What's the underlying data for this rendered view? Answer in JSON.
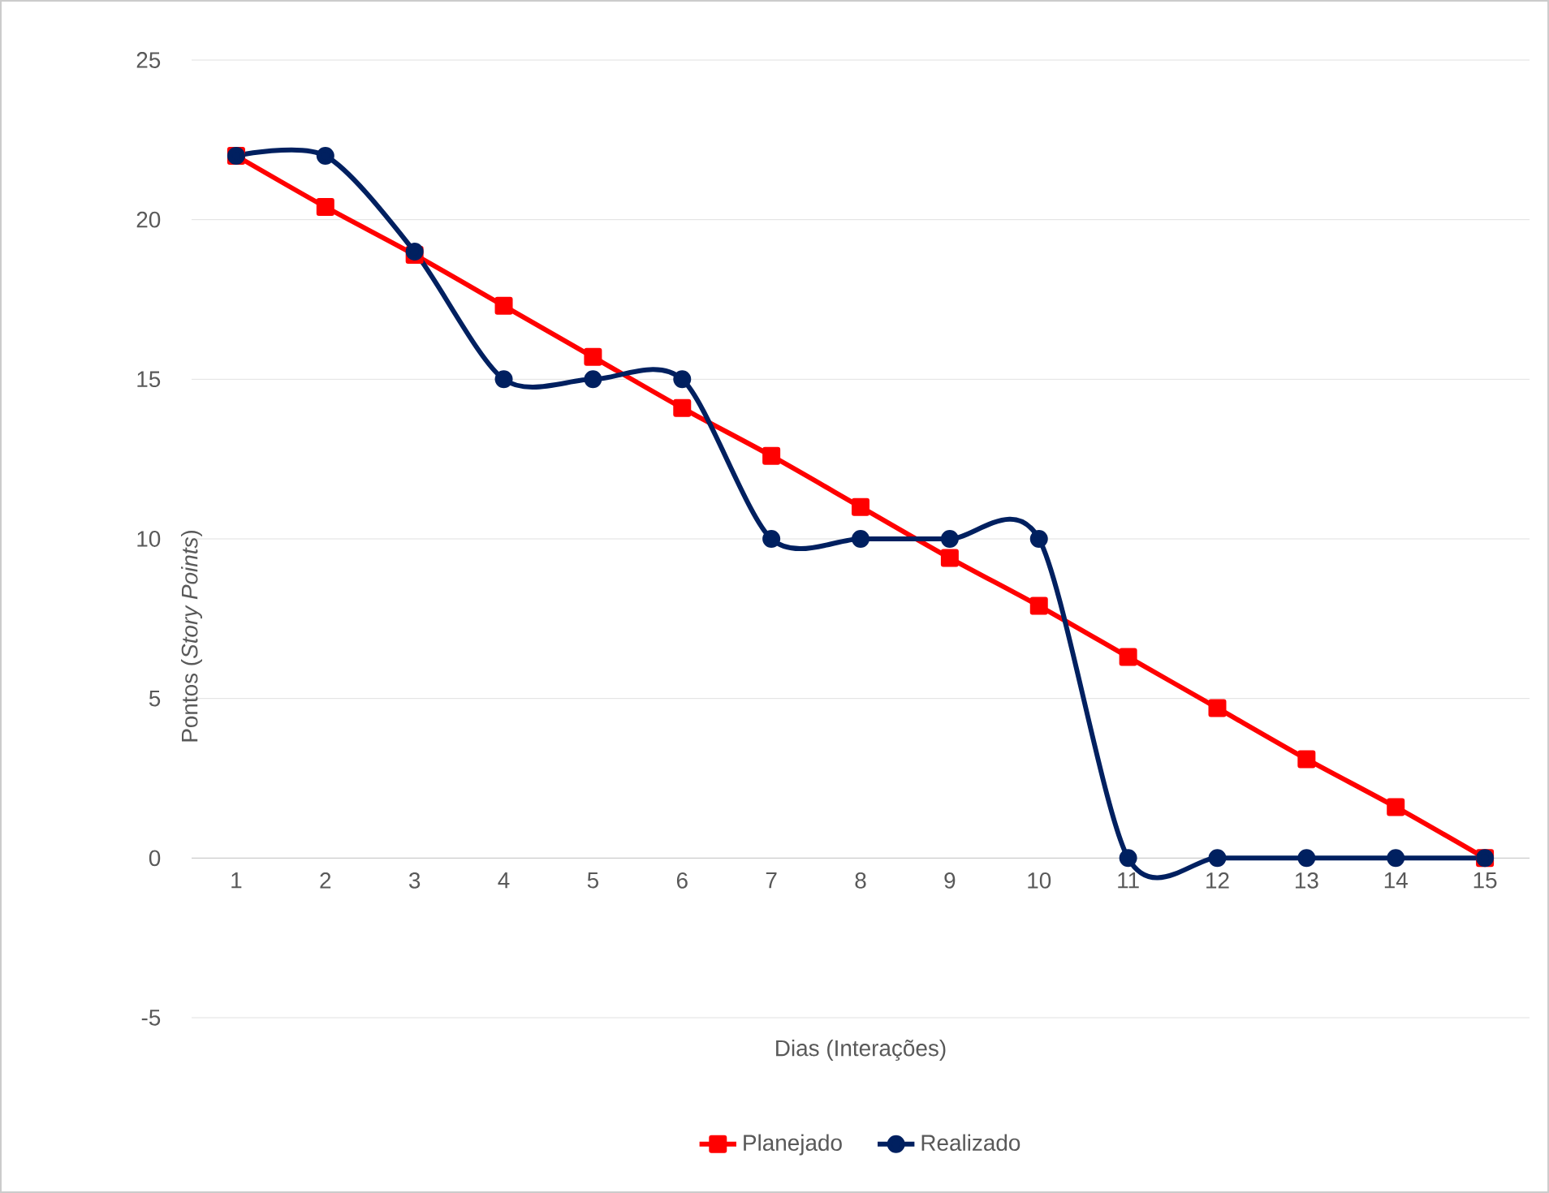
{
  "chart_data": {
    "type": "line",
    "xlabel": "Dias (Interações)",
    "ylabel": "Pontos (*Story Points*)",
    "categories": [
      "1",
      "2",
      "3",
      "4",
      "5",
      "6",
      "7",
      "8",
      "9",
      "10",
      "11",
      "12",
      "13",
      "14",
      "15"
    ],
    "series": [
      {
        "name": "Planejado",
        "color": "#ff0000",
        "marker": "square",
        "values": [
          22,
          20.4,
          18.9,
          17.3,
          15.7,
          14.1,
          12.6,
          11,
          9.4,
          7.9,
          6.3,
          4.7,
          3.1,
          1.6,
          0
        ]
      },
      {
        "name": "Realizado",
        "color": "#002060",
        "marker": "circle",
        "values": [
          22,
          22,
          19,
          15,
          15,
          15,
          10,
          10,
          10,
          10,
          0,
          0,
          0,
          0,
          0
        ]
      }
    ],
    "ylim": [
      -5,
      25
    ],
    "yticks": [
      -5,
      0,
      5,
      10,
      15,
      20,
      25
    ],
    "grid": "y",
    "legend": "bottom",
    "line_style": "solid"
  }
}
